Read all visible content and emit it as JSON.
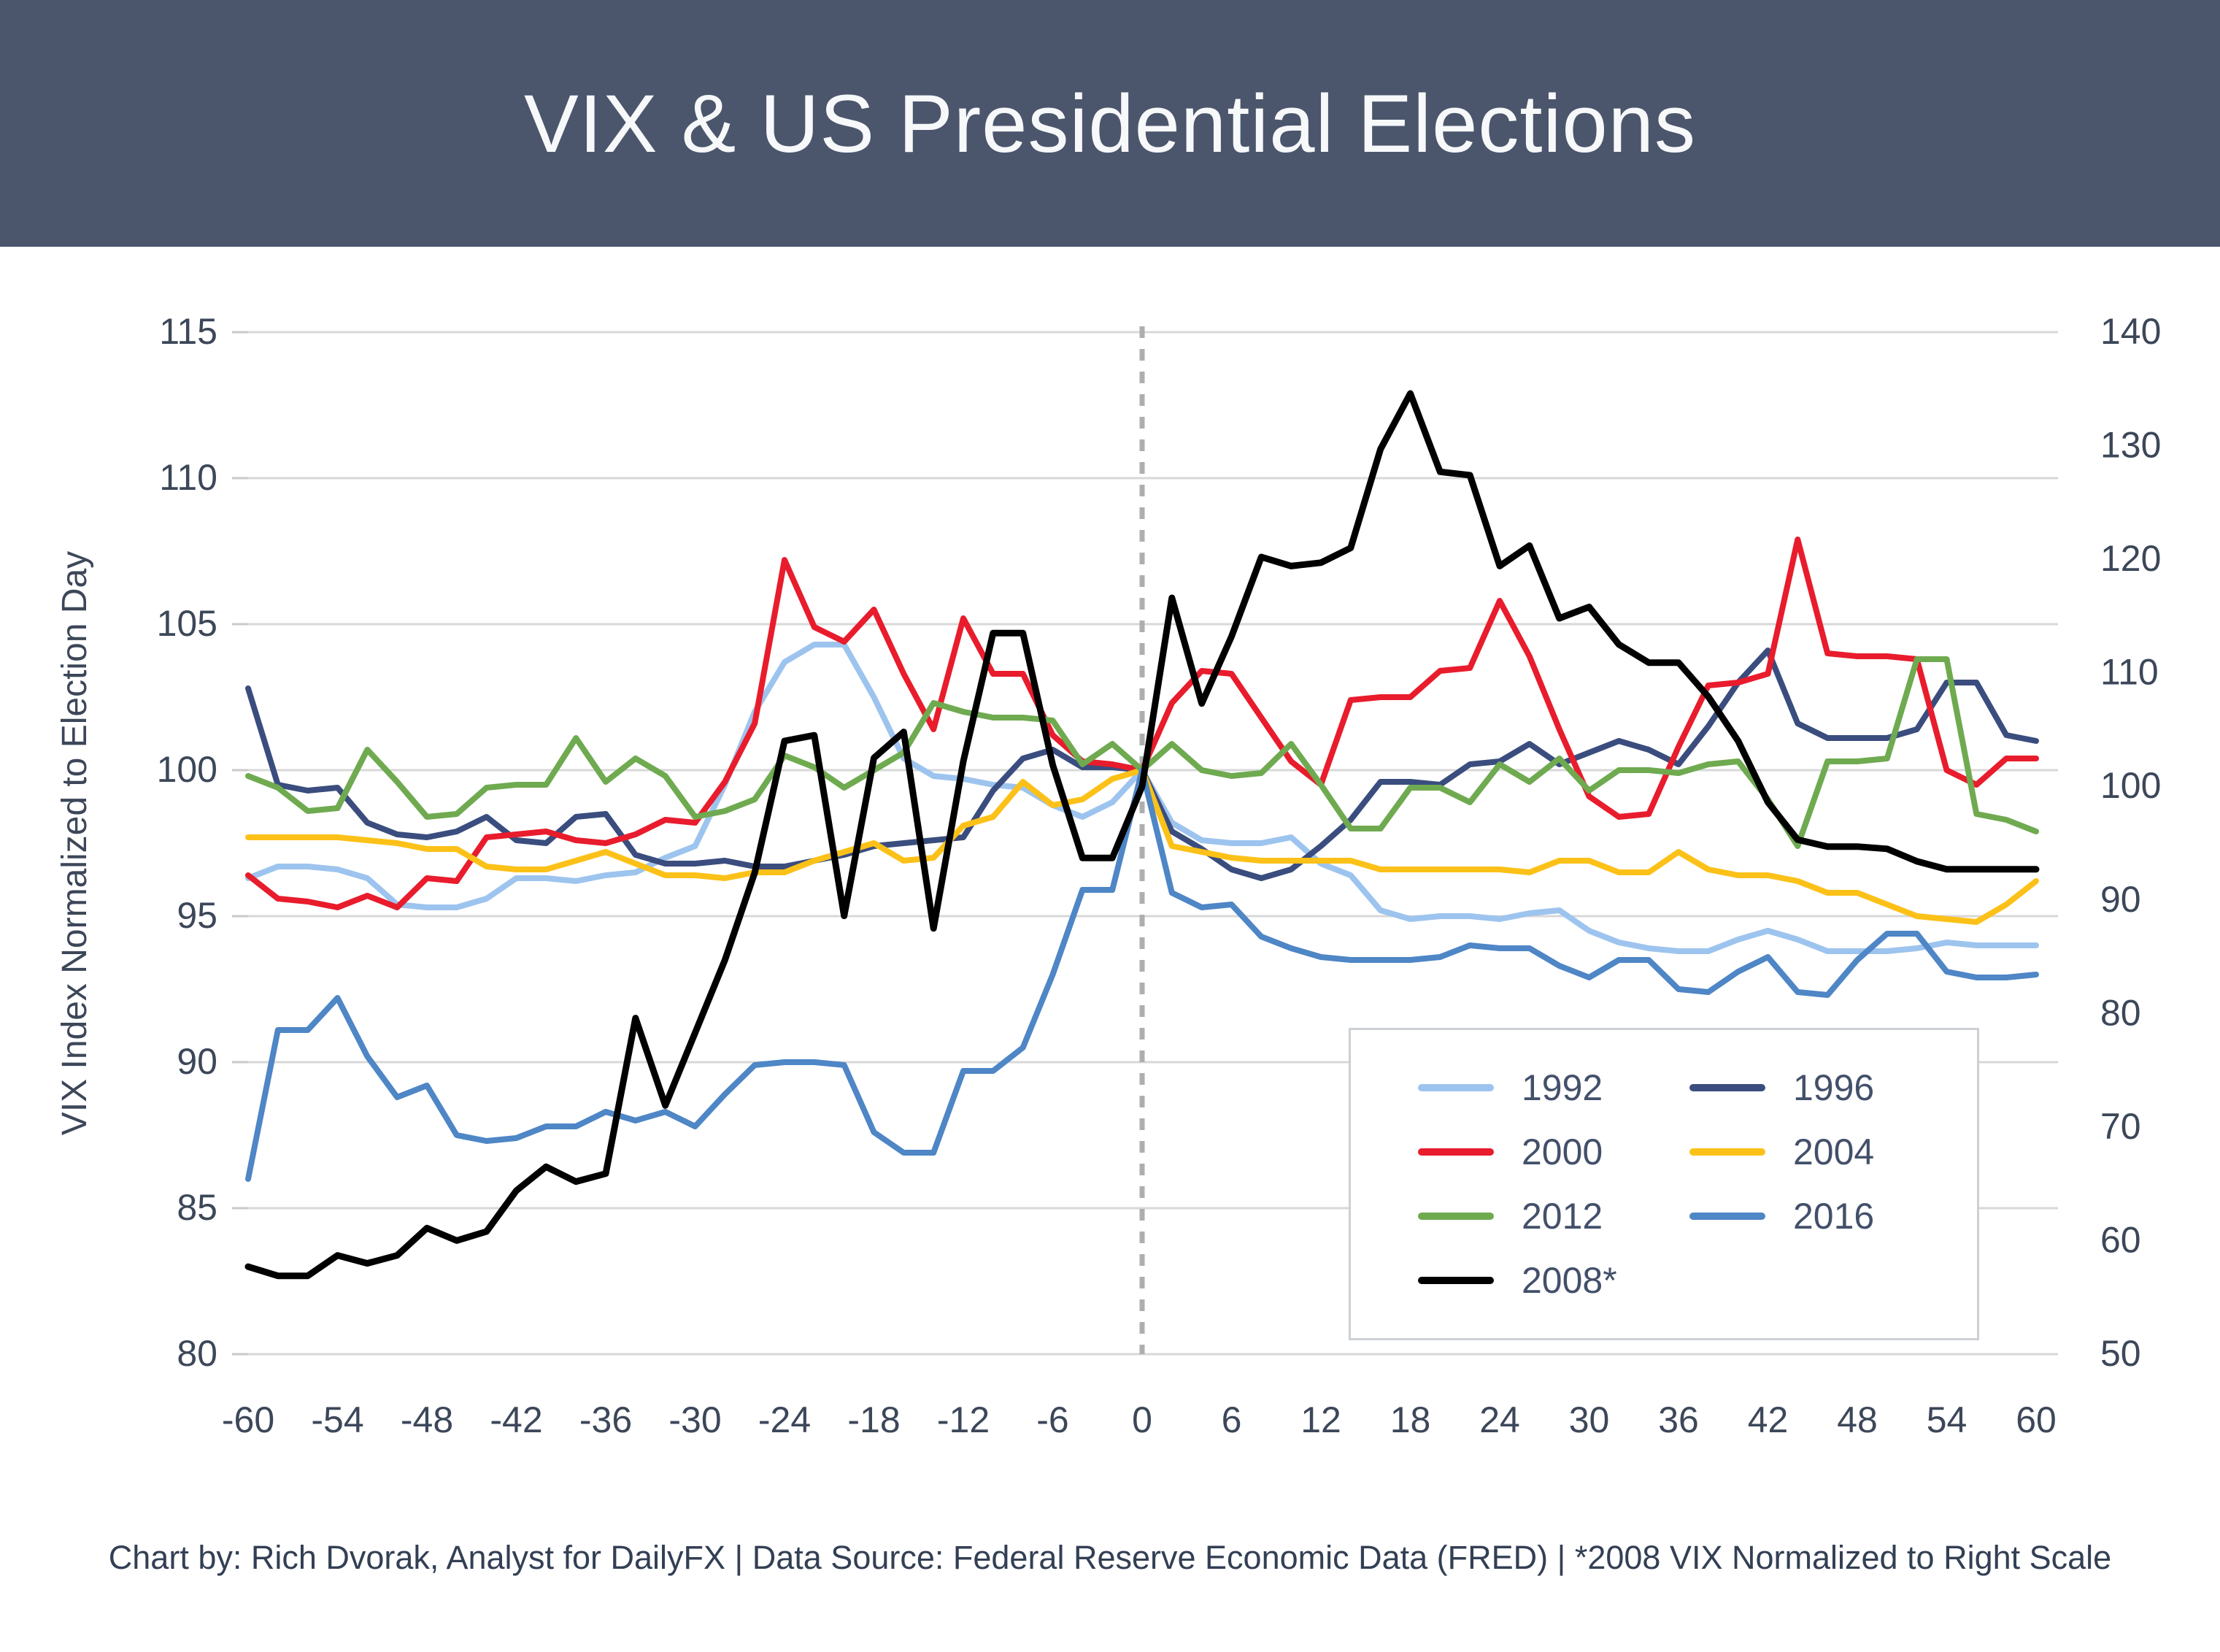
{
  "header": {
    "title": "VIX & US Presidential Elections"
  },
  "footer": {
    "text": "Chart by: Rich Dvorak, Analyst for DailyFX  |  Data Source: Federal Reserve Economic Data (FRED)  |  *2008 VIX Normalized to Right Scale"
  },
  "chart_data": {
    "type": "line",
    "title": "VIX & US Presidential Elections",
    "ylabel_left": "VIX Index Normalized to Election Day",
    "xlabel": "",
    "x_range": [
      -60,
      60
    ],
    "x_step": 2,
    "xticks": [
      -60,
      -54,
      -48,
      -42,
      -36,
      -30,
      -24,
      -18,
      -12,
      -6,
      0,
      6,
      12,
      18,
      24,
      30,
      36,
      42,
      48,
      54,
      60
    ],
    "yticks_left": [
      80,
      85,
      90,
      95,
      100,
      105,
      110,
      115
    ],
    "yticks_right": [
      50,
      60,
      70,
      80,
      90,
      100,
      110,
      120,
      130,
      140
    ],
    "ylim_left": [
      80,
      115
    ],
    "ylim_right": [
      50,
      140
    ],
    "grid": "horizontal",
    "zero_line_x": 0,
    "colors": {
      "grid": "#d8d8d8",
      "tick_text": "#3c4759",
      "zero_line": "#aeaeae",
      "header_bg": "#4b566c",
      "title_text": "#f7f8fa"
    },
    "legend_position": "inside-lower-right",
    "series": [
      {
        "name": "1992",
        "color": "#9dc4ee",
        "axis": "left",
        "width": 8,
        "values": [
          96.3,
          96.7,
          96.7,
          96.6,
          96.3,
          95.4,
          95.3,
          95.3,
          95.6,
          96.3,
          96.3,
          96.2,
          96.4,
          96.5,
          97.0,
          97.4,
          99.5,
          102.0,
          103.7,
          104.3,
          104.3,
          102.5,
          100.4,
          99.8,
          99.7,
          99.5,
          99.4,
          98.8,
          98.4,
          98.9,
          100.0,
          98.2,
          97.6,
          97.5,
          97.5,
          97.7,
          96.8,
          96.4,
          95.2,
          94.9,
          95.0,
          95.0,
          94.9,
          95.1,
          95.2,
          94.5,
          94.1,
          93.9,
          93.8,
          93.8,
          94.2,
          94.5,
          94.2,
          93.8,
          93.8,
          93.8,
          93.9,
          94.1,
          94.0,
          94.0,
          94.0
        ]
      },
      {
        "name": "1996",
        "color": "#3a4d7e",
        "axis": "left",
        "width": 8,
        "values": [
          102.8,
          99.5,
          99.3,
          99.4,
          98.2,
          97.8,
          97.7,
          97.9,
          98.4,
          97.6,
          97.5,
          98.4,
          98.5,
          97.1,
          96.8,
          96.8,
          96.9,
          96.7,
          96.7,
          96.9,
          97.1,
          97.4,
          97.5,
          97.6,
          97.7,
          99.3,
          100.4,
          100.7,
          100.1,
          100.1,
          100.0,
          97.9,
          97.3,
          96.6,
          96.3,
          96.6,
          97.4,
          98.3,
          99.6,
          99.6,
          99.5,
          100.2,
          100.3,
          100.9,
          100.2,
          100.6,
          101.0,
          100.7,
          100.2,
          101.5,
          103.0,
          104.1,
          101.6,
          101.1,
          101.1,
          101.1,
          101.4,
          103.0,
          103.0,
          101.2,
          101.0
        ]
      },
      {
        "name": "2000",
        "color": "#e81c2c",
        "axis": "left",
        "width": 8,
        "values": [
          96.4,
          95.6,
          95.5,
          95.3,
          95.7,
          95.3,
          96.3,
          96.2,
          97.7,
          97.8,
          97.9,
          97.6,
          97.5,
          97.8,
          98.3,
          98.2,
          99.6,
          101.6,
          107.2,
          104.9,
          104.4,
          105.5,
          103.3,
          101.4,
          105.2,
          103.3,
          103.3,
          101.2,
          100.3,
          100.2,
          100.0,
          102.3,
          103.4,
          103.3,
          101.8,
          100.3,
          99.5,
          102.4,
          102.5,
          102.5,
          103.4,
          103.5,
          105.8,
          103.9,
          101.4,
          99.1,
          98.4,
          98.5,
          100.8,
          102.9,
          103.0,
          103.3,
          107.9,
          104.0,
          103.9,
          103.9,
          103.8,
          100.0,
          99.5,
          100.4,
          100.4
        ]
      },
      {
        "name": "2004",
        "color": "#fcc118",
        "axis": "left",
        "width": 8,
        "values": [
          97.7,
          97.7,
          97.7,
          97.7,
          97.6,
          97.5,
          97.3,
          97.3,
          96.7,
          96.6,
          96.6,
          96.9,
          97.2,
          96.8,
          96.4,
          96.4,
          96.3,
          96.5,
          96.5,
          96.9,
          97.2,
          97.5,
          96.9,
          97.0,
          98.1,
          98.4,
          99.6,
          98.8,
          99.0,
          99.7,
          100.0,
          97.4,
          97.2,
          97.0,
          96.9,
          96.9,
          96.9,
          96.9,
          96.6,
          96.6,
          96.6,
          96.6,
          96.6,
          96.5,
          96.9,
          96.9,
          96.5,
          96.5,
          97.2,
          96.6,
          96.4,
          96.4,
          96.2,
          95.8,
          95.8,
          95.4,
          95.0,
          94.9,
          94.8,
          95.4,
          96.2
        ]
      },
      {
        "name": "2012",
        "color": "#6faa50",
        "axis": "left",
        "width": 8,
        "values": [
          99.8,
          99.4,
          98.6,
          98.7,
          100.7,
          99.6,
          98.4,
          98.5,
          99.4,
          99.5,
          99.5,
          101.1,
          99.6,
          100.4,
          99.8,
          98.4,
          98.6,
          99.0,
          100.5,
          100.1,
          99.4,
          100.0,
          100.6,
          102.3,
          102.0,
          101.8,
          101.8,
          101.7,
          100.2,
          100.9,
          100.0,
          100.9,
          100.0,
          99.8,
          99.9,
          100.9,
          99.5,
          98.0,
          98.0,
          99.4,
          99.4,
          98.9,
          100.2,
          99.6,
          100.4,
          99.3,
          100.0,
          100.0,
          99.9,
          100.2,
          100.3,
          99.0,
          97.4,
          100.3,
          100.3,
          100.4,
          103.8,
          103.8,
          98.5,
          98.3,
          97.9
        ]
      },
      {
        "name": "2016",
        "color": "#4e86c6",
        "axis": "left",
        "width": 8,
        "values": [
          86.0,
          91.1,
          91.1,
          92.2,
          90.2,
          88.8,
          89.2,
          87.5,
          87.3,
          87.4,
          87.8,
          87.8,
          88.3,
          88.0,
          88.3,
          87.8,
          88.9,
          89.9,
          90.0,
          90.0,
          89.9,
          87.6,
          86.9,
          86.9,
          89.7,
          89.7,
          90.5,
          93.0,
          95.9,
          95.9,
          100.0,
          95.8,
          95.3,
          95.4,
          94.3,
          93.9,
          93.6,
          93.5,
          93.5,
          93.5,
          93.6,
          94.0,
          93.9,
          93.9,
          93.3,
          92.9,
          93.5,
          93.5,
          92.5,
          92.4,
          93.1,
          93.6,
          92.4,
          92.3,
          93.5,
          94.4,
          94.4,
          93.1,
          92.9,
          92.9,
          93.0
        ]
      },
      {
        "name": "2008*",
        "color": "#000000",
        "axis": "right",
        "width": 9,
        "values": [
          57.7,
          56.9,
          56.9,
          58.7,
          58.0,
          58.7,
          61.1,
          60.0,
          60.8,
          64.4,
          66.5,
          65.2,
          65.9,
          79.6,
          71.9,
          78.3,
          84.7,
          92.4,
          104.0,
          104.5,
          88.6,
          102.5,
          104.8,
          87.5,
          102.2,
          113.5,
          113.5,
          101.9,
          93.7,
          93.7,
          100.0,
          116.6,
          107.3,
          113.2,
          120.2,
          119.4,
          119.7,
          121.0,
          129.7,
          134.6,
          127.7,
          127.4,
          119.4,
          121.2,
          114.8,
          115.8,
          112.5,
          110.9,
          110.9,
          107.9,
          104.0,
          98.6,
          95.3,
          94.7,
          94.7,
          94.5,
          93.4,
          92.7,
          92.7,
          92.7,
          92.7
        ]
      }
    ],
    "legend_grid": [
      [
        "1992",
        "1996"
      ],
      [
        "2000",
        "2004"
      ],
      [
        "2012",
        "2016"
      ],
      [
        "2008*",
        ""
      ]
    ]
  }
}
